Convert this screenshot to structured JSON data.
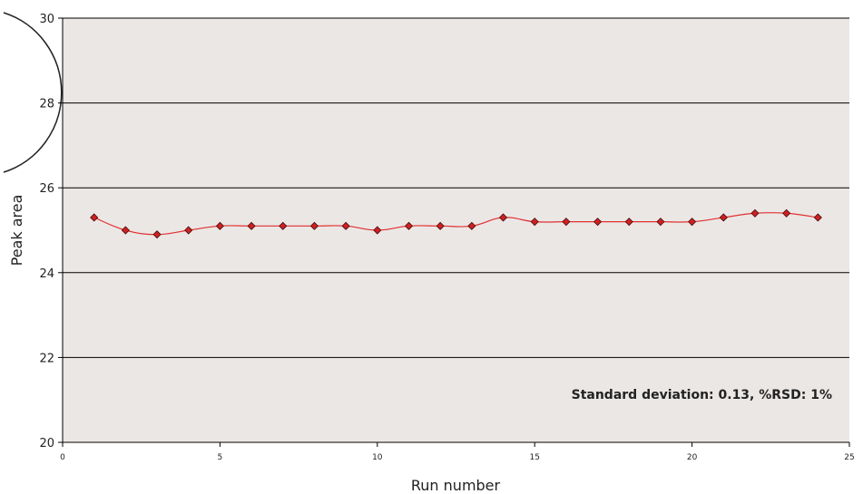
{
  "chart_data": {
    "type": "line",
    "xlabel": "Run number",
    "ylabel": "Peak area",
    "xlim": [
      0,
      25
    ],
    "ylim": [
      20,
      30
    ],
    "x_ticks": [
      "0",
      "5",
      "10",
      "15",
      "20",
      "25"
    ],
    "y_ticks": [
      "20",
      "22",
      "24",
      "26",
      "28",
      "30"
    ],
    "grid": "horizontal",
    "annotation": "Standard deviation: 0.13, %RSD: 1%",
    "series": [
      {
        "color": "#e03030",
        "marker_color": "#cc2222",
        "x": [
          1,
          2,
          3,
          4,
          5,
          6,
          7,
          8,
          9,
          10,
          11,
          12,
          13,
          14,
          15,
          16,
          17,
          18,
          19,
          20,
          21,
          22,
          23,
          24
        ],
        "y": [
          25.3,
          25.0,
          24.9,
          25.0,
          25.1,
          25.1,
          25.1,
          25.1,
          25.1,
          25.0,
          25.1,
          25.1,
          25.1,
          25.3,
          25.2,
          25.2,
          25.2,
          25.2,
          25.2,
          25.2,
          25.3,
          25.4,
          25.4,
          25.3
        ]
      }
    ]
  },
  "colors": {
    "plot_background": "#ebe7e5",
    "gridline": "#000000",
    "line": "#e03030",
    "marker": "#cc2222"
  }
}
